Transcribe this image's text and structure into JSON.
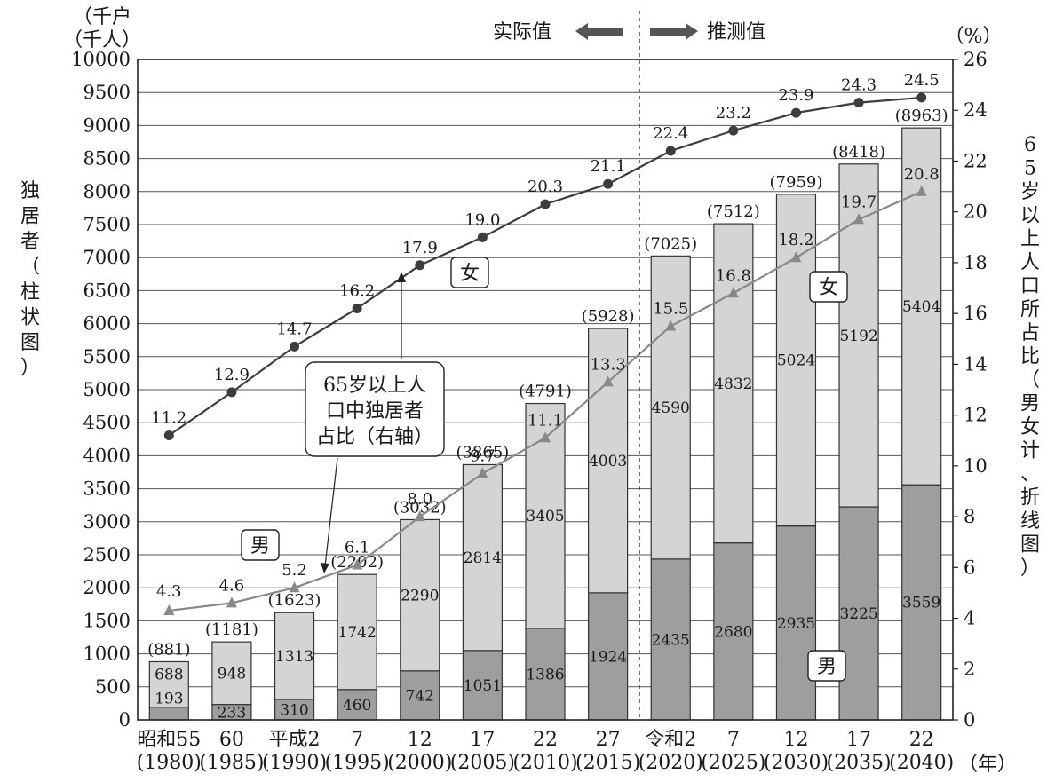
{
  "chart_data": {
    "type": "bar+line",
    "left_axis_unit": [
      "（千户",
      "（千人）"
    ],
    "left_axis_label": "独居者（柱状图）",
    "right_axis_unit": "（%）",
    "right_axis_label": "65岁以上人口所占比（男女计、折线图）",
    "x_unit": "（年）",
    "ylim_left": [
      0,
      10000
    ],
    "ylim_right": [
      0,
      26
    ],
    "left_ticks": [
      0,
      500,
      1000,
      1500,
      2000,
      2500,
      3000,
      3500,
      4000,
      4500,
      5000,
      5500,
      6000,
      6500,
      7000,
      7500,
      8000,
      8500,
      9000,
      9500,
      10000
    ],
    "right_ticks": [
      0,
      2,
      4,
      6,
      8,
      10,
      12,
      14,
      16,
      18,
      20,
      22,
      24,
      26
    ],
    "categories": [
      {
        "era": "昭和55",
        "year": "(1980)"
      },
      {
        "era": "60",
        "year": "(1985)"
      },
      {
        "era": "平成2",
        "year": "(1990)"
      },
      {
        "era": "7",
        "year": "(1995)"
      },
      {
        "era": "12",
        "year": "(2000)"
      },
      {
        "era": "17",
        "year": "(2005)"
      },
      {
        "era": "22",
        "year": "(2010)"
      },
      {
        "era": "27",
        "year": "(2015)"
      },
      {
        "era": "令和2",
        "year": "(2020)"
      },
      {
        "era": "7",
        "year": "(2025)"
      },
      {
        "era": "12",
        "year": "(2030)"
      },
      {
        "era": "17",
        "year": "(2035)"
      },
      {
        "era": "22",
        "year": "(2040)"
      }
    ],
    "bar_series": [
      {
        "name": "男",
        "values": [
          193,
          233,
          310,
          460,
          742,
          1051,
          1386,
          1924,
          2435,
          2680,
          2935,
          3225,
          3559
        ]
      },
      {
        "name": "女",
        "values": [
          688,
          948,
          1313,
          1742,
          2290,
          2814,
          3405,
          4003,
          4590,
          4832,
          5024,
          5192,
          5404
        ]
      }
    ],
    "totals": [
      "(881)",
      "(1181)",
      "(1623)",
      "(2202)",
      "(3032)",
      "(3865)",
      "(4791)",
      "(5928)",
      "(7025)",
      "(7512)",
      "(7959)",
      "(8418)",
      "(8963)"
    ],
    "line_series": [
      {
        "name": "女",
        "values": [
          11.2,
          12.9,
          14.7,
          16.2,
          17.9,
          19.0,
          20.3,
          21.1,
          22.4,
          23.2,
          23.9,
          24.3,
          24.5
        ]
      },
      {
        "name": "男",
        "values": [
          4.3,
          4.6,
          5.2,
          6.1,
          8.0,
          9.7,
          11.1,
          13.3,
          15.5,
          16.8,
          18.2,
          19.7,
          20.8
        ]
      }
    ],
    "annotations": {
      "actual": "实际值",
      "projected": "推测值",
      "callout": [
        "65岁以上人",
        "口中独居者",
        "占比（右轴）"
      ],
      "line_female_label": "女",
      "line_male_label": "男",
      "bar_female_label": "女",
      "bar_male_label": "男"
    },
    "colors": {
      "male_bar": "#9e9e9e",
      "female_bar": "#d4d4d4",
      "female_line": "#3d3d3d",
      "male_line": "#888888"
    }
  }
}
